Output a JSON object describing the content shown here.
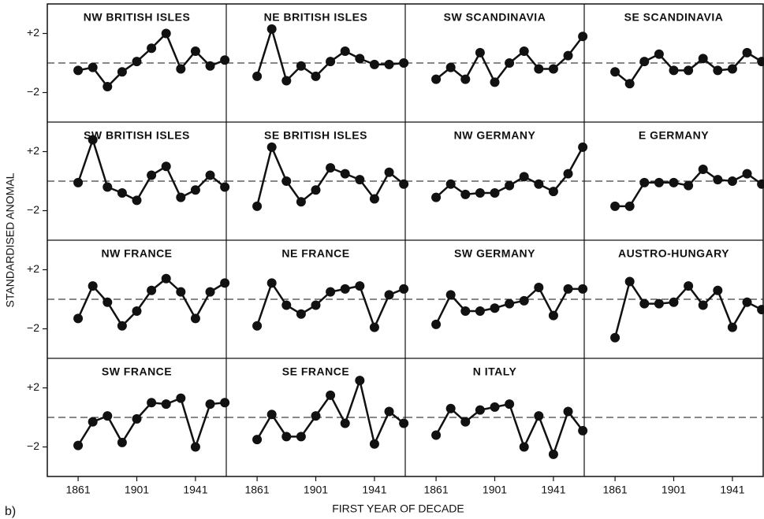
{
  "chart_data": {
    "type": "line",
    "label": "b)",
    "xlabel": "FIRST YEAR OF DECADE",
    "ylabel": "STANDARDISED ANOMAL",
    "color": "#111111",
    "x": [
      1861,
      1871,
      1881,
      1891,
      1901,
      1911,
      1921,
      1931,
      1941,
      1951,
      1961
    ],
    "xlim": [
      1840,
      1962
    ],
    "xticks": [
      1861,
      1901,
      1941
    ],
    "ylim": [
      -4,
      4
    ],
    "yticks": [
      {
        "value": 2,
        "label": "+2"
      },
      {
        "value": -2,
        "label": "−2"
      }
    ],
    "series": [
      {
        "name": "NW BRITISH ISLES",
        "values": [
          -0.5,
          -0.3,
          -1.6,
          -0.6,
          0.1,
          1.0,
          2.0,
          -0.4,
          0.8,
          -0.2,
          0.2
        ]
      },
      {
        "name": "NE BRITISH ISLES",
        "values": [
          -0.9,
          2.3,
          -1.2,
          -0.2,
          -0.9,
          0.1,
          0.8,
          0.3,
          -0.1,
          -0.1,
          0.0
        ]
      },
      {
        "name": "SW SCANDINAVIA",
        "values": [
          -1.1,
          -0.3,
          -1.1,
          0.7,
          -1.3,
          0.0,
          0.8,
          -0.4,
          -0.4,
          0.5,
          1.8
        ]
      },
      {
        "name": "SE SCANDINAVIA",
        "values": [
          -0.6,
          -1.4,
          0.1,
          0.6,
          -0.5,
          -0.5,
          0.3,
          -0.5,
          -0.4,
          0.7,
          0.1
        ]
      },
      {
        "name": "SW BRITISH ISLES",
        "values": [
          -0.1,
          2.8,
          -0.4,
          -0.8,
          -1.3,
          0.4,
          1.0,
          -1.1,
          -0.6,
          0.4,
          -0.4
        ]
      },
      {
        "name": "SE BRITISH ISLES",
        "values": [
          -1.7,
          2.3,
          0.0,
          -1.4,
          -0.6,
          0.9,
          0.5,
          0.1,
          -1.2,
          0.6,
          -0.2
        ]
      },
      {
        "name": "NW GERMANY",
        "values": [
          -1.1,
          -0.2,
          -0.9,
          -0.8,
          -0.8,
          -0.3,
          0.3,
          -0.2,
          -0.7,
          0.5,
          2.3
        ]
      },
      {
        "name": "E GERMANY",
        "values": [
          -1.7,
          -1.7,
          -0.1,
          -0.1,
          -0.1,
          -0.3,
          0.8,
          0.1,
          0.0,
          0.5,
          -0.2
        ]
      },
      {
        "name": "NW FRANCE",
        "values": [
          -1.3,
          0.9,
          -0.2,
          -1.8,
          -0.8,
          0.6,
          1.4,
          0.5,
          -1.3,
          0.5,
          1.1
        ]
      },
      {
        "name": "NE FRANCE",
        "values": [
          -1.8,
          1.1,
          -0.4,
          -1.0,
          -0.4,
          0.5,
          0.7,
          0.9,
          -1.9,
          0.3,
          0.7
        ]
      },
      {
        "name": "SW GERMANY",
        "values": [
          -1.7,
          0.3,
          -0.8,
          -0.8,
          -0.6,
          -0.3,
          -0.1,
          0.8,
          -1.1,
          0.7,
          0.7
        ]
      },
      {
        "name": "AUSTRO-HUNGARY",
        "values": [
          -2.6,
          1.2,
          -0.3,
          -0.3,
          -0.2,
          0.9,
          -0.4,
          0.6,
          -1.9,
          -0.2,
          -0.7
        ]
      },
      {
        "name": "SW FRANCE",
        "values": [
          -1.9,
          -0.3,
          0.1,
          -1.7,
          -0.1,
          1.0,
          0.9,
          1.3,
          -2.0,
          0.9,
          1.0
        ]
      },
      {
        "name": "SE FRANCE",
        "values": [
          -1.5,
          0.2,
          -1.3,
          -1.3,
          0.1,
          1.5,
          -0.4,
          2.5,
          -1.8,
          0.4,
          -0.4
        ]
      },
      {
        "name": "N ITALY",
        "values": [
          -1.2,
          0.6,
          -0.3,
          0.5,
          0.7,
          0.9,
          -2.0,
          0.1,
          -2.5,
          0.4,
          -0.9
        ]
      }
    ]
  }
}
